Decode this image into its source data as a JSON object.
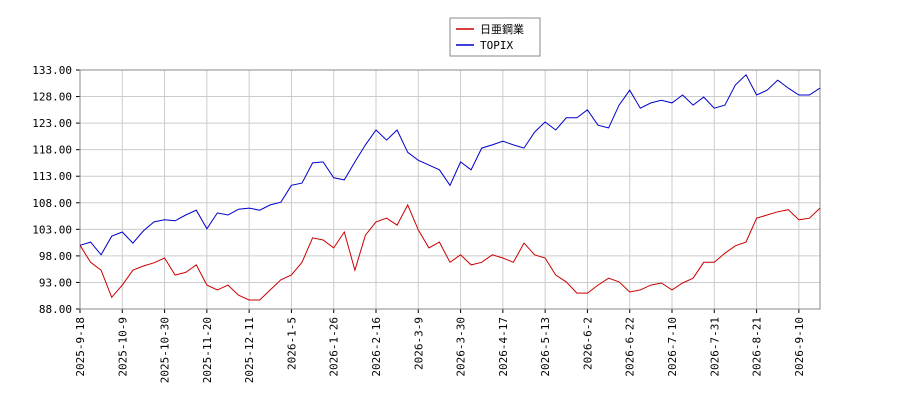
{
  "chart_data": {
    "type": "line",
    "categories": [
      "2025-9-18",
      null,
      null,
      null,
      "2025-10-9",
      null,
      null,
      null,
      "2025-10-30",
      null,
      null,
      null,
      "2025-11-20",
      null,
      null,
      null,
      "2025-12-11",
      null,
      null,
      null,
      "2026-1-5",
      null,
      null,
      null,
      "2026-1-26",
      null,
      null,
      null,
      "2026-2-16",
      null,
      null,
      null,
      "2026-3-9",
      null,
      null,
      null,
      "2026-3-30",
      null,
      null,
      null,
      "2026-4-17",
      null,
      null,
      null,
      "2026-5-13",
      null,
      null,
      null,
      "2026-6-2",
      null,
      null,
      null,
      "2026-6-22",
      null,
      null,
      null,
      "2026-7-10",
      null,
      null,
      null,
      "2026-7-31",
      null,
      null,
      null,
      "2026-8-21",
      null,
      null,
      null,
      "2026-9-10",
      null,
      null
    ],
    "series": [
      {
        "name": "日亜鋼業",
        "color": "#cc0000",
        "values": [
          100.0,
          96.8,
          95.3,
          90.2,
          92.5,
          95.3,
          96.1,
          96.7,
          97.6,
          94.4,
          94.9,
          96.3,
          92.5,
          91.6,
          92.5,
          90.6,
          89.7,
          89.7,
          91.6,
          93.5,
          94.4,
          96.8,
          101.4,
          101.0,
          99.5,
          102.5,
          95.3,
          101.9,
          104.4,
          105.1,
          103.8,
          107.6,
          102.9,
          99.5,
          100.6,
          96.8,
          98.2,
          96.3,
          96.8,
          98.2,
          97.6,
          96.8,
          100.4,
          98.2,
          97.6,
          94.4,
          93.1,
          91.0,
          91.0,
          92.5,
          93.8,
          93.1,
          91.2,
          91.6,
          92.5,
          92.9,
          91.6,
          92.9,
          93.8,
          96.8,
          96.8,
          98.5,
          99.9,
          100.6,
          105.1,
          105.7,
          106.3,
          106.7,
          104.8,
          105.1,
          107.0
        ]
      },
      {
        "name": "TOPIX",
        "color": "#0000cc",
        "values": [
          100.0,
          100.6,
          98.2,
          101.7,
          102.5,
          100.4,
          102.7,
          104.4,
          104.8,
          104.6,
          105.7,
          106.6,
          103.1,
          106.1,
          105.7,
          106.8,
          107.0,
          106.6,
          107.6,
          108.1,
          111.3,
          111.7,
          115.5,
          115.7,
          112.7,
          112.3,
          115.7,
          118.9,
          121.7,
          119.8,
          121.7,
          117.5,
          116.0,
          115.1,
          114.2,
          111.3,
          115.7,
          114.2,
          118.3,
          118.9,
          119.6,
          118.9,
          118.3,
          121.3,
          123.2,
          121.7,
          124.0,
          124.0,
          125.5,
          122.6,
          122.1,
          126.4,
          129.2,
          125.8,
          126.8,
          127.3,
          126.8,
          128.3,
          126.4,
          127.9,
          125.8,
          126.4,
          130.2,
          132.1,
          128.3,
          129.2,
          131.1,
          129.6,
          128.3,
          128.3,
          129.6
        ]
      }
    ],
    "ylim": [
      88,
      133
    ],
    "yticks": [
      {
        "value": 88,
        "label": "88.00"
      },
      {
        "value": 93,
        "label": "93.00"
      },
      {
        "value": 98,
        "label": "98.00"
      },
      {
        "value": 103,
        "label": "103.00"
      },
      {
        "value": 108,
        "label": "108.00"
      },
      {
        "value": 113,
        "label": "113.00"
      },
      {
        "value": 118,
        "label": "118.00"
      },
      {
        "value": 123,
        "label": "123.00"
      },
      {
        "value": 128,
        "label": "128.00"
      },
      {
        "value": 133,
        "label": "133.00"
      }
    ],
    "grid": true,
    "legend": "top"
  }
}
